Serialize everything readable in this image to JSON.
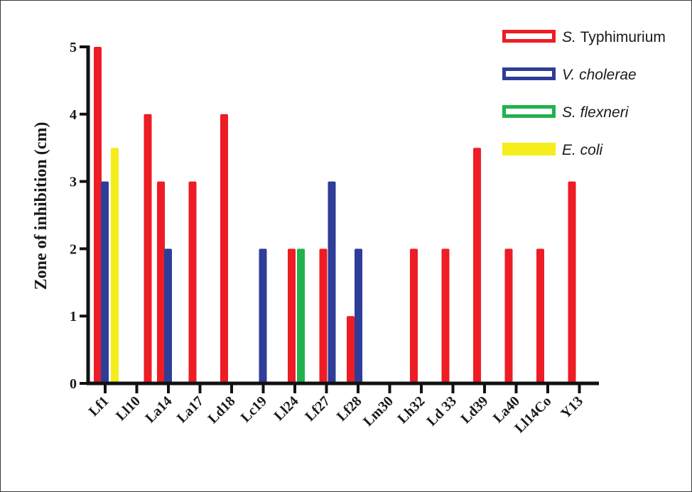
{
  "chart_data": {
    "type": "bar",
    "ylabel": "Zone of inhibition (cm)",
    "xlabel": "",
    "ylim": [
      0,
      5
    ],
    "yticks": [
      0,
      1,
      2,
      3,
      4,
      5
    ],
    "grid": false,
    "legend_position": "top-right",
    "categories": [
      "Lf1",
      "Ll10",
      "La14",
      "La17",
      "Ld18",
      "Lc19",
      "Ll24",
      "Lf27",
      "Lf28",
      "Lm30",
      "Lh32",
      "Ld 33",
      "Ld39",
      "La40",
      "Ll14Co",
      "Y13"
    ],
    "series": [
      {
        "name": "S. Typhimurium",
        "name_prefix": "S.",
        "name_suffix": "Typhimurium",
        "color": "#ee1c24",
        "legend_style": "outline",
        "values": [
          5,
          4,
          3,
          3,
          4,
          null,
          2,
          2,
          1,
          null,
          2,
          2,
          3.5,
          2,
          2,
          3
        ]
      },
      {
        "name": "V. cholerae",
        "color": "#2e3d98",
        "legend_style": "outline",
        "values": [
          3,
          null,
          2,
          null,
          null,
          2,
          null,
          3,
          2,
          null,
          null,
          null,
          null,
          null,
          null,
          null
        ]
      },
      {
        "name": "S. flexneri",
        "color": "#22b24c",
        "legend_style": "outline",
        "values": [
          null,
          null,
          null,
          null,
          null,
          null,
          2,
          null,
          null,
          null,
          null,
          null,
          null,
          null,
          null,
          null
        ]
      },
      {
        "name": "E. coli",
        "color": "#f5ed1c",
        "legend_style": "filled",
        "values": [
          3.5,
          null,
          null,
          null,
          null,
          null,
          null,
          null,
          null,
          null,
          null,
          null,
          null,
          null,
          null,
          null
        ]
      }
    ]
  }
}
